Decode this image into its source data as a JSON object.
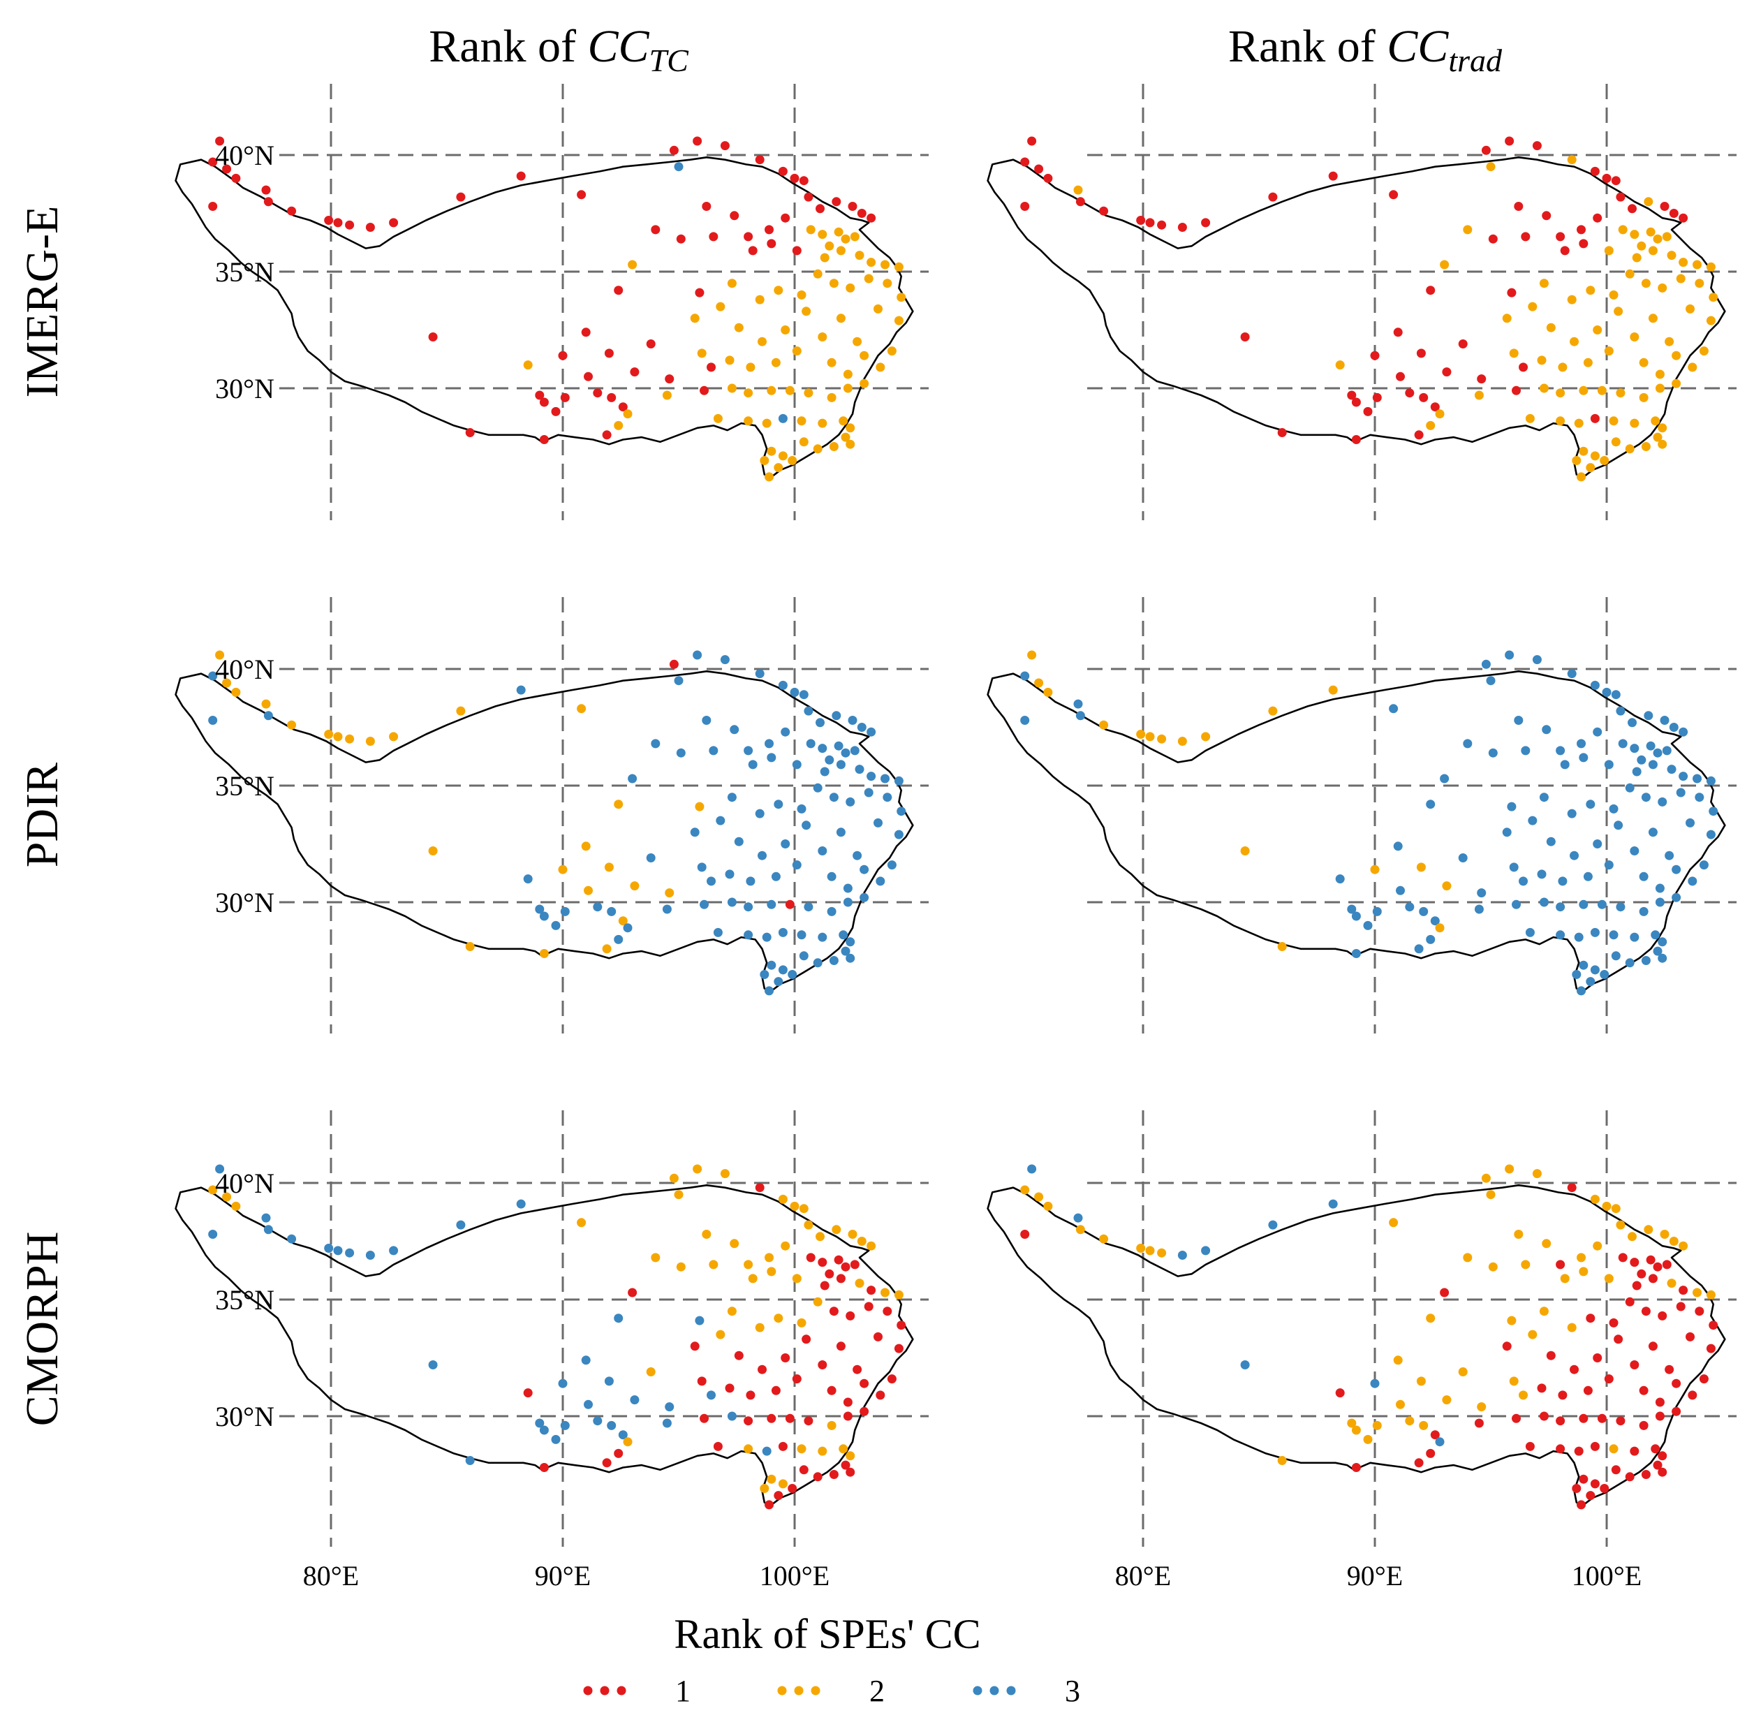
{
  "figure": {
    "legend_title": "Rank of SPEs' CC",
    "legend_items": [
      {
        "label": "1",
        "color": "#e31a1c"
      },
      {
        "label": "2",
        "color": "#f5a700"
      },
      {
        "label": "3",
        "color": "#3a86c0"
      }
    ]
  },
  "chart_data": {
    "type": "scatter",
    "description_axes": "map panels, longitude vs latitude",
    "columns": [
      {
        "title_prefix": "Rank of ",
        "title_math": "CC",
        "title_sub": "TC"
      },
      {
        "title_prefix": "Rank of ",
        "title_math": "CC",
        "title_sub": "trad"
      }
    ],
    "rows": [
      "IMERG-E",
      "PDIR",
      "CMORPH"
    ],
    "xlim": [
      73,
      106
    ],
    "ylim": [
      24.5,
      42.5
    ],
    "x_ticks": [
      80,
      90,
      100
    ],
    "x_tick_labels": [
      "80°E",
      "90°E",
      "100°E"
    ],
    "y_ticks": [
      30,
      35,
      40
    ],
    "y_tick_labels": [
      "30°N",
      "35°N",
      "40°N"
    ],
    "grid": true,
    "legend_position": "bottom",
    "stations": [
      [
        75.2,
        40.6
      ],
      [
        74.9,
        39.7
      ],
      [
        75.5,
        39.4
      ],
      [
        75.9,
        39.0
      ],
      [
        74.9,
        37.8
      ],
      [
        77.2,
        38.5
      ],
      [
        77.3,
        38.0
      ],
      [
        78.3,
        37.6
      ],
      [
        79.9,
        37.2
      ],
      [
        80.3,
        37.1
      ],
      [
        80.8,
        37.0
      ],
      [
        81.7,
        36.9
      ],
      [
        82.7,
        37.1
      ],
      [
        85.6,
        38.2
      ],
      [
        88.2,
        39.1
      ],
      [
        90.8,
        38.3
      ],
      [
        94.8,
        40.2
      ],
      [
        95.0,
        39.5
      ],
      [
        95.8,
        40.6
      ],
      [
        97.0,
        40.4
      ],
      [
        98.5,
        39.8
      ],
      [
        99.5,
        39.3
      ],
      [
        100.0,
        39.0
      ],
      [
        100.4,
        38.9
      ],
      [
        100.6,
        38.2
      ],
      [
        101.1,
        37.7
      ],
      [
        101.8,
        38.0
      ],
      [
        102.5,
        37.8
      ],
      [
        102.9,
        37.5
      ],
      [
        103.3,
        37.3
      ],
      [
        96.2,
        37.8
      ],
      [
        97.4,
        37.4
      ],
      [
        98.0,
        36.5
      ],
      [
        98.9,
        36.8
      ],
      [
        99.6,
        37.3
      ],
      [
        94.0,
        36.8
      ],
      [
        95.1,
        36.4
      ],
      [
        96.5,
        36.5
      ],
      [
        98.2,
        35.9
      ],
      [
        99.0,
        36.2
      ],
      [
        100.1,
        35.9
      ],
      [
        100.7,
        36.8
      ],
      [
        101.2,
        36.6
      ],
      [
        101.5,
        36.1
      ],
      [
        101.9,
        36.7
      ],
      [
        102.2,
        36.4
      ],
      [
        102.6,
        36.5
      ],
      [
        101.3,
        35.6
      ],
      [
        102.0,
        35.9
      ],
      [
        102.8,
        35.7
      ],
      [
        103.3,
        35.4
      ],
      [
        103.9,
        35.3
      ],
      [
        104.5,
        35.2
      ],
      [
        93.0,
        35.3
      ],
      [
        92.4,
        34.2
      ],
      [
        95.9,
        34.1
      ],
      [
        96.8,
        33.5
      ],
      [
        97.3,
        34.5
      ],
      [
        98.5,
        33.8
      ],
      [
        99.3,
        34.2
      ],
      [
        100.3,
        34.0
      ],
      [
        101.0,
        34.9
      ],
      [
        101.7,
        34.5
      ],
      [
        102.4,
        34.3
      ],
      [
        103.2,
        34.7
      ],
      [
        104.0,
        34.5
      ],
      [
        104.6,
        33.9
      ],
      [
        95.7,
        33.0
      ],
      [
        97.6,
        32.6
      ],
      [
        98.6,
        32.0
      ],
      [
        99.6,
        32.5
      ],
      [
        100.5,
        33.3
      ],
      [
        101.2,
        32.2
      ],
      [
        102.0,
        33.0
      ],
      [
        102.7,
        32.0
      ],
      [
        103.6,
        33.4
      ],
      [
        104.5,
        32.9
      ],
      [
        104.2,
        31.6
      ],
      [
        84.4,
        32.2
      ],
      [
        91.0,
        32.4
      ],
      [
        93.8,
        31.9
      ],
      [
        96.0,
        31.5
      ],
      [
        97.2,
        31.2
      ],
      [
        98.1,
        30.9
      ],
      [
        99.2,
        31.1
      ],
      [
        100.1,
        31.6
      ],
      [
        101.6,
        31.1
      ],
      [
        102.3,
        30.6
      ],
      [
        103.0,
        31.4
      ],
      [
        103.7,
        30.9
      ],
      [
        88.5,
        31.0
      ],
      [
        90.0,
        31.4
      ],
      [
        92.0,
        31.5
      ],
      [
        91.1,
        30.5
      ],
      [
        93.1,
        30.7
      ],
      [
        89.0,
        29.7
      ],
      [
        89.2,
        29.4
      ],
      [
        89.7,
        29.0
      ],
      [
        90.1,
        29.6
      ],
      [
        91.5,
        29.8
      ],
      [
        92.1,
        29.6
      ],
      [
        92.6,
        29.2
      ],
      [
        94.5,
        29.7
      ],
      [
        96.1,
        29.9
      ],
      [
        97.3,
        30.0
      ],
      [
        98.0,
        29.8
      ],
      [
        99.0,
        29.9
      ],
      [
        99.8,
        29.9
      ],
      [
        100.6,
        29.8
      ],
      [
        101.6,
        29.6
      ],
      [
        102.3,
        30.0
      ],
      [
        103.0,
        30.2
      ],
      [
        96.7,
        28.7
      ],
      [
        98.0,
        28.6
      ],
      [
        98.8,
        28.5
      ],
      [
        99.5,
        28.7
      ],
      [
        100.3,
        28.6
      ],
      [
        101.2,
        28.5
      ],
      [
        102.1,
        28.6
      ],
      [
        102.4,
        28.3
      ],
      [
        102.2,
        27.9
      ],
      [
        101.7,
        27.5
      ],
      [
        101.0,
        27.4
      ],
      [
        100.4,
        27.7
      ],
      [
        99.5,
        27.1
      ],
      [
        99.0,
        27.3
      ],
      [
        98.7,
        26.9
      ],
      [
        98.9,
        26.2
      ],
      [
        99.3,
        26.6
      ],
      [
        99.9,
        26.9
      ],
      [
        102.4,
        27.6
      ],
      [
        92.4,
        28.4
      ],
      [
        91.9,
        28.0
      ],
      [
        89.2,
        27.8
      ],
      [
        86.0,
        28.1
      ],
      [
        96.4,
        30.9
      ],
      [
        94.6,
        30.4
      ],
      [
        92.8,
        28.9
      ]
    ],
    "rank_codes_note": "each string gives the rank (1,2,3) of every station in order; panel order: IMERG-E TC, IMERG-E trad, PDIR TC, PDIR trad, CMORPH TC, CMORPH trad",
    "panels": [
      {
        "row": "IMERG-E",
        "column": "TC",
        "ranks": "111111111111111113111111111111111111111112222222222222112222222222222222222222111222222222211111111111212222222222232222222222222222111112211"
      },
      {
        "row": "IMERG-E",
        "column": "trad",
        "ranks": "111112111111111112112111112111111112111122222222222222112222222222222222222222111222222222211111111111212222222222212222222222222222111112211"
      },
      {
        "row": "PDIR",
        "column": "TC",
        "ranks": "232232322222223213333333333333333333333333333333333333223333333333333333333333223333333333322223333332333331333333333333333333333333222323333"
      },
      {
        "row": "PDIR",
        "column": "trad",
        "ranks": "232233322222222333333333333333333333333333333333333333333333333333333333333333233333333333322323333333333333333333333333333333333333332332233"
      },
      {
        "row": "CMORPH",
        "column": "TC",
        "ranks": "322233333333333222221222222222222222222221111111121221332222221111111111111111332111111111133333333333313111121112312222111122211111113332333"
      },
      {
        "row": "CMORPH",
        "column": "trad",
        "ranks": "322213222223333222221222222222221222222221111111121221222221111111111111111111322211111111132222222221111111111111112111111111111111112223211"
      }
    ]
  }
}
